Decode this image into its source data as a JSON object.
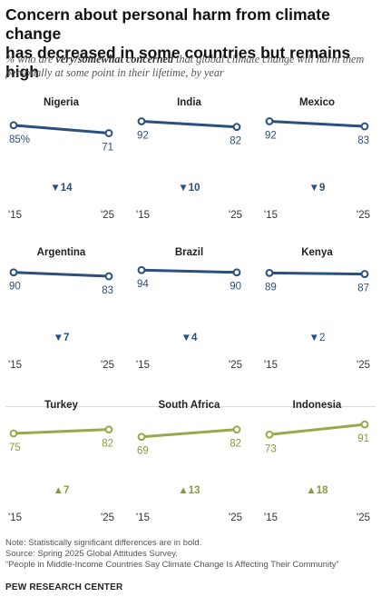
{
  "title_line1": "Concern about personal harm from climate change",
  "title_line2": "has decreased in some countries but remains high",
  "subtitle_pre": "% who are ",
  "subtitle_bold": "very/somewhat concerned",
  "subtitle_post": " that global climate change will harm them personally at some point in their lifetime, by year",
  "colors": {
    "decrease": "#2b4f7e",
    "increase": "#9aa84a",
    "label_decrease": "#2b4f7e",
    "label_increase": "#8c9a3c"
  },
  "chart_data": {
    "type": "line",
    "x": [
      "'15",
      "'25"
    ],
    "panels": [
      {
        "name": "Nigeria",
        "values": [
          85,
          71
        ],
        "start_label": "85%",
        "end_label": "71",
        "change": "14",
        "direction": "down"
      },
      {
        "name": "India",
        "values": [
          92,
          82
        ],
        "start_label": "92",
        "end_label": "82",
        "change": "10",
        "direction": "down"
      },
      {
        "name": "Mexico",
        "values": [
          92,
          83
        ],
        "start_label": "92",
        "end_label": "83",
        "change": "9",
        "direction": "down"
      },
      {
        "name": "Argentina",
        "values": [
          90,
          83
        ],
        "start_label": "90",
        "end_label": "83",
        "change": "7",
        "direction": "down"
      },
      {
        "name": "Brazil",
        "values": [
          94,
          90
        ],
        "start_label": "94",
        "end_label": "90",
        "change": "4",
        "direction": "down"
      },
      {
        "name": "Kenya",
        "values": [
          89,
          87
        ],
        "start_label": "89",
        "end_label": "87",
        "change": "2",
        "direction": "down"
      },
      {
        "name": "Turkey",
        "values": [
          75,
          82
        ],
        "start_label": "75",
        "end_label": "82",
        "change": "7",
        "direction": "up"
      },
      {
        "name": "South Africa",
        "values": [
          69,
          82
        ],
        "start_label": "69",
        "end_label": "82",
        "change": "13",
        "direction": "up"
      },
      {
        "name": "Indonesia",
        "values": [
          73,
          91
        ],
        "start_label": "73",
        "end_label": "91",
        "change": "18",
        "direction": "up"
      }
    ],
    "significant": [
      true,
      true,
      true,
      true,
      true,
      false,
      true,
      true,
      true
    ]
  },
  "notes": [
    "Note: Statistically significant differences are in bold.",
    "Source: Spring 2025 Global Attitudes Survey.",
    "“People in Middle-Income Countries Say Climate Change Is Affecting Their Community”"
  ],
  "footer": "PEW RESEARCH CENTER"
}
